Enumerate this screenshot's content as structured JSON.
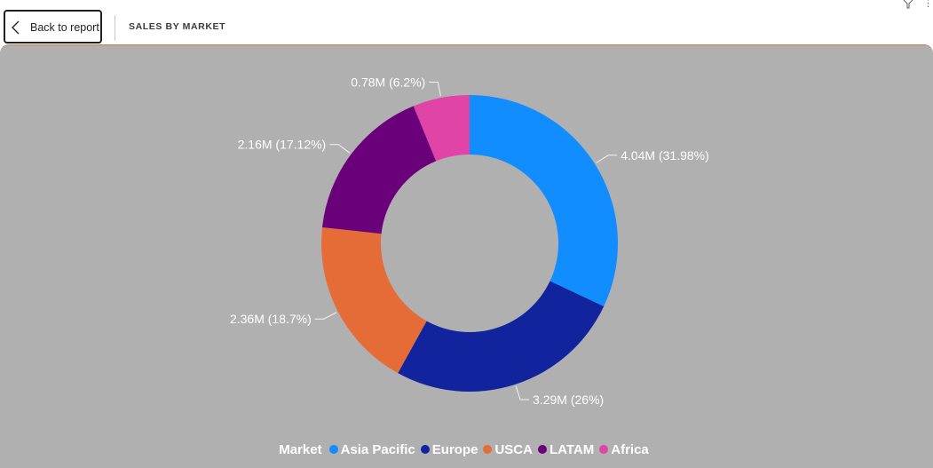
{
  "header": {
    "back_label": "Back to report",
    "page_title": "SALES BY MARKET"
  },
  "chart_data": {
    "type": "pie",
    "variant": "donut",
    "title": "",
    "legend_title": "Market",
    "legend_position": "bottom-center",
    "categories": [
      "Asia Pacific",
      "Europe",
      "USCA",
      "LATAM",
      "Africa"
    ],
    "values": [
      4.04,
      3.29,
      2.36,
      2.16,
      0.78
    ],
    "percents": [
      31.98,
      26,
      18.7,
      17.12,
      6.2
    ],
    "unit": "M",
    "data_labels": [
      "4.04M (31.98%)",
      "3.29M (26%)",
      "2.36M (18.7%)",
      "2.16M (17.12%)",
      "0.78M (6.2%)"
    ],
    "colors": [
      "#118dff",
      "#12239e",
      "#e66c37",
      "#6b007b",
      "#e044a7"
    ]
  },
  "colors": {
    "panel_background": "#b0b0b0",
    "panel_border": "#c87a4e",
    "label_text": "#ffffff"
  }
}
